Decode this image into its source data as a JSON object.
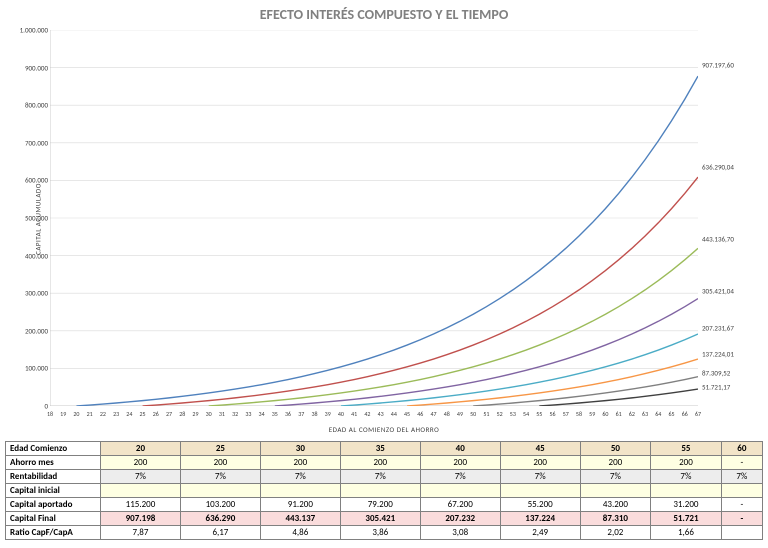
{
  "chart": {
    "type": "line",
    "title": "EFECTO INTERÉS COMPUESTO Y EL TIEMPO",
    "title_fontsize": 14,
    "title_color": "#808080",
    "ylabel": "CAPITAL ACUMULADO",
    "xlabel": "EDAD AL COMIENZO DEL AHORRO",
    "label_fontsize": 7,
    "background_color": "#ffffff",
    "grid_color": "#d9d9d9",
    "axis_color": "#bfbfbf",
    "x_ticks": [
      18,
      19,
      20,
      21,
      22,
      23,
      24,
      25,
      26,
      27,
      28,
      29,
      30,
      31,
      32,
      33,
      34,
      35,
      36,
      37,
      38,
      39,
      40,
      41,
      42,
      43,
      44,
      45,
      46,
      47,
      48,
      49,
      50,
      51,
      52,
      53,
      54,
      55,
      56,
      57,
      58,
      59,
      60,
      61,
      62,
      63,
      64,
      65,
      66,
      67
    ],
    "xlim": [
      18,
      67
    ],
    "ylim": [
      0,
      1000000
    ],
    "ytick_step": 100000,
    "y_tick_labels": [
      "0",
      "100.000",
      "200.000",
      "300.000",
      "400.000",
      "500.000",
      "600.000",
      "700.000",
      "800.000",
      "900.000",
      "1.000.000"
    ],
    "line_width": 1.4,
    "series": [
      {
        "start_age": 20,
        "end_value": 907197.6,
        "end_label": "907.197,60",
        "color": "#4f81bd"
      },
      {
        "start_age": 25,
        "end_value": 636290.04,
        "end_label": "636.290,04",
        "color": "#c0504d"
      },
      {
        "start_age": 30,
        "end_value": 443136.7,
        "end_label": "443.136,70",
        "color": "#9bbb59"
      },
      {
        "start_age": 35,
        "end_value": 305421.04,
        "end_label": "305.421,04",
        "color": "#8064a2"
      },
      {
        "start_age": 40,
        "end_value": 207231.67,
        "end_label": "207.231,67",
        "color": "#4bacc6"
      },
      {
        "start_age": 45,
        "end_value": 137224.01,
        "end_label": "137.224,01",
        "color": "#f79646"
      },
      {
        "start_age": 50,
        "end_value": 87309.52,
        "end_label": "87.309,52",
        "color": "#808080"
      },
      {
        "start_age": 55,
        "end_value": 51721.17,
        "end_label": "51.721,17",
        "color": "#404040"
      }
    ],
    "rate_annual": 0.07,
    "monthly_contribution": 200,
    "end_age": 67
  },
  "table": {
    "row_labels": {
      "start": "Edad Comienzo",
      "monthly": "Ahorro mes",
      "return": "Rentabilidad",
      "initial": "Capital inicial",
      "contributed": "Capital aportado",
      "final": "Capital Final",
      "ratio": "Ratio CapF/CapA"
    },
    "columns_start_age": [
      "20",
      "25",
      "30",
      "35",
      "40",
      "45",
      "50",
      "55",
      "60"
    ],
    "monthly": [
      "200",
      "200",
      "200",
      "200",
      "200",
      "200",
      "200",
      "200",
      "-"
    ],
    "return_pct": [
      "7%",
      "7%",
      "7%",
      "7%",
      "7%",
      "7%",
      "7%",
      "7%",
      "7%"
    ],
    "initial": [
      "",
      "",
      "",
      "",
      "",
      "",
      "",
      "",
      ""
    ],
    "contributed": [
      "115.200",
      "103.200",
      "91.200",
      "79.200",
      "67.200",
      "55.200",
      "43.200",
      "31.200",
      "-"
    ],
    "final": [
      "907.198",
      "636.290",
      "443.137",
      "305.421",
      "207.232",
      "137.224",
      "87.310",
      "51.721",
      "-"
    ],
    "ratio": [
      "7,87",
      "6,17",
      "4,86",
      "3,86",
      "3,08",
      "2,49",
      "2,02",
      "1,66",
      ""
    ]
  }
}
